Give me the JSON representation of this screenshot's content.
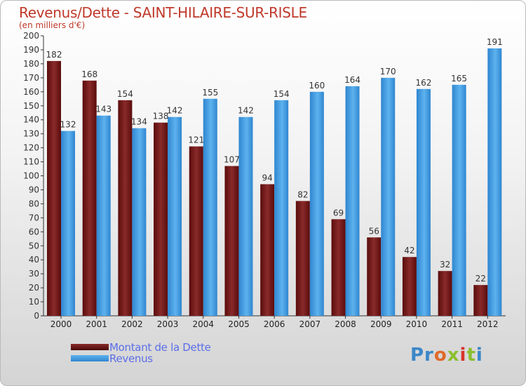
{
  "chart_data": {
    "type": "bar",
    "title": "Revenus/Dette - SAINT-HILAIRE-SUR-RISLE",
    "subtitle": "(en milliers d'€)",
    "categories": [
      "2000",
      "2001",
      "2002",
      "2003",
      "2004",
      "2005",
      "2006",
      "2007",
      "2008",
      "2009",
      "2010",
      "2011",
      "2012"
    ],
    "series": [
      {
        "name": "Montant de la Dette",
        "values": [
          182,
          168,
          154,
          138,
          121,
          107,
          94,
          82,
          69,
          56,
          42,
          32,
          22
        ],
        "color": "#7a1a1a"
      },
      {
        "name": "Revenus",
        "values": [
          132,
          143,
          134,
          142,
          155,
          142,
          154,
          160,
          164,
          170,
          162,
          165,
          191
        ],
        "color": "#3d95dc"
      }
    ],
    "ylim": [
      0,
      200
    ],
    "ytick_step": 10,
    "grid": false,
    "legend_position": "bottom-left"
  },
  "logo": {
    "text": "Proxiti"
  }
}
